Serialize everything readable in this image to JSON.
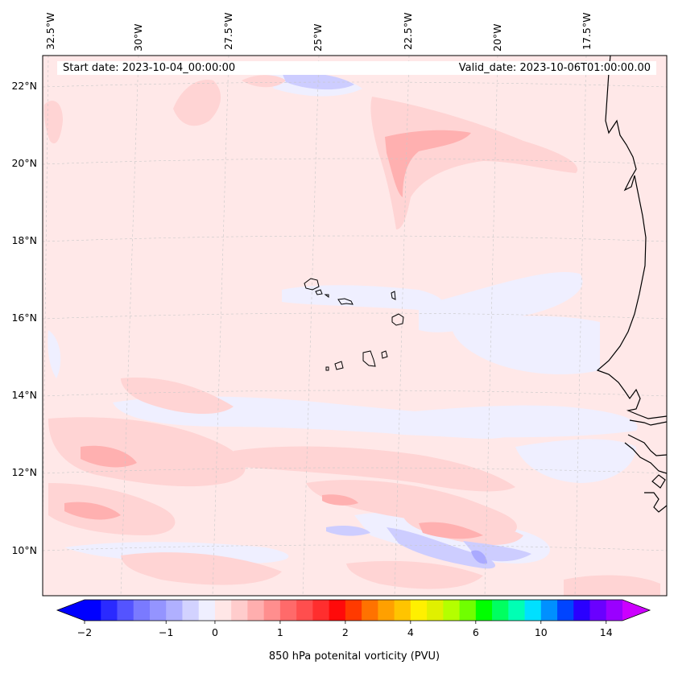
{
  "header": {
    "start_date": "Start date: 2023-10-04_00:00:00",
    "valid_date": "Valid_date: 2023-10-06T01:00:00.00"
  },
  "map": {
    "projection": "Lambert conformal",
    "region": "Cape Verde / West African coast",
    "lon_labels": [
      "32.5°W",
      "30°W",
      "27.5°W",
      "25°W",
      "22.5°W",
      "20°W",
      "17.5°W"
    ],
    "lat_labels": [
      "22°N",
      "20°N",
      "18°N",
      "16°N",
      "14°N",
      "12°N",
      "10°N"
    ],
    "background_color": "#ffe8e8",
    "coastline_color": "#000000"
  },
  "colorbar": {
    "label": "850 hPa potenital vorticity (PVU)",
    "ticks": [
      "−2",
      "−1",
      "0",
      "1",
      "2",
      "4",
      "6",
      "10",
      "14"
    ],
    "colors": [
      "#0000ff",
      "#2a2aff",
      "#5454ff",
      "#7a7aff",
      "#9494ff",
      "#b0b0ff",
      "#d2d2ff",
      "#efefff",
      "#ffe6e6",
      "#ffcccc",
      "#ffaeae",
      "#ff8e8e",
      "#ff6a6a",
      "#ff4e4e",
      "#ff2e2e",
      "#ff0a0a",
      "#ff3a00",
      "#ff7200",
      "#ffa000",
      "#ffc400",
      "#fff000",
      "#e0f000",
      "#b4ff00",
      "#70ff00",
      "#00ff00",
      "#00ff60",
      "#00ffb4",
      "#00e0ff",
      "#0090ff",
      "#0044ff",
      "#2a00ff",
      "#6a00ff",
      "#9a00ff"
    ],
    "extend_low_color": "#0000ff",
    "extend_high_color": "#cc00ff"
  }
}
